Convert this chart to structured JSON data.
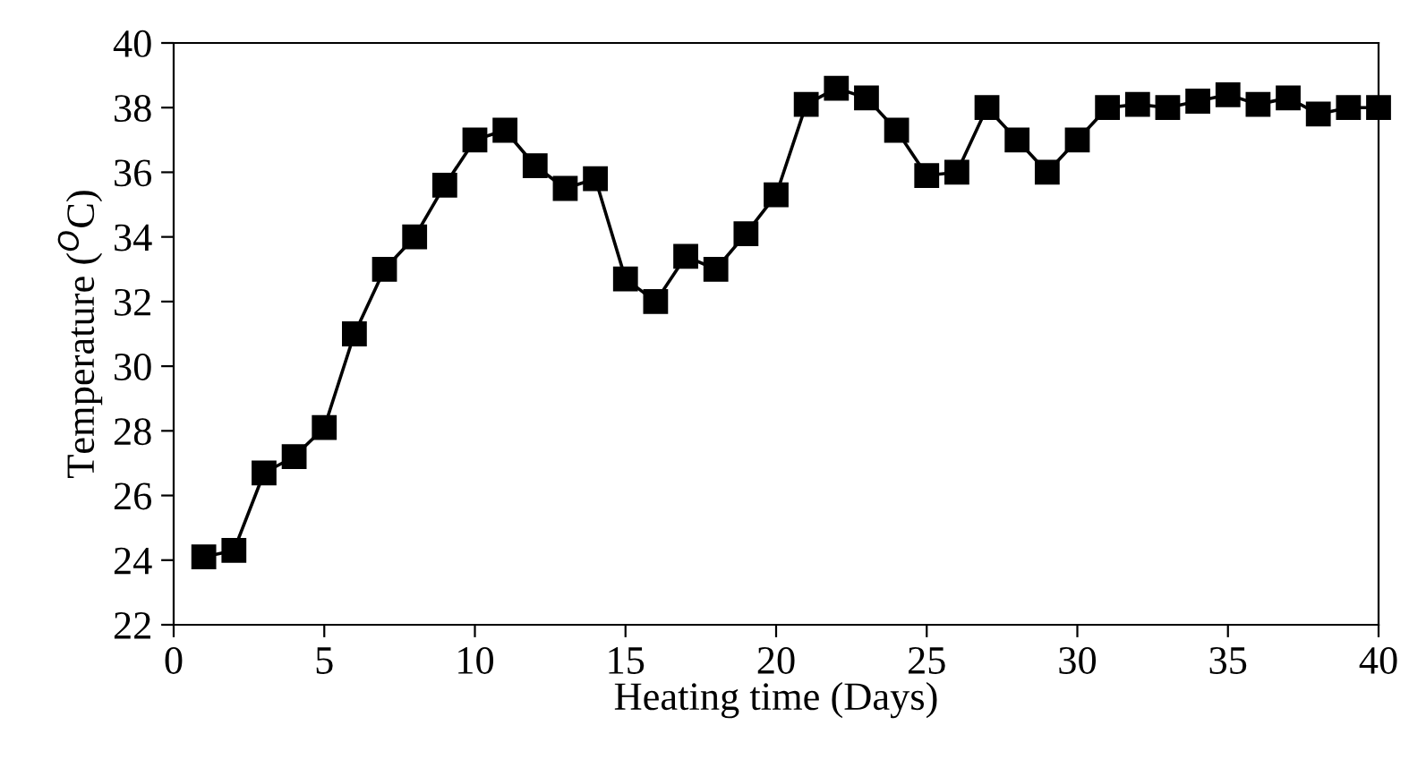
{
  "chart_data": {
    "type": "line",
    "xlabel": "Heating time (Days)",
    "ylabel": "Temperature ($^{O}$C)",
    "x": [
      1,
      2,
      3,
      4,
      5,
      6,
      7,
      8,
      9,
      10,
      11,
      12,
      13,
      14,
      15,
      16,
      17,
      18,
      19,
      20,
      21,
      22,
      23,
      24,
      25,
      26,
      27,
      28,
      29,
      30,
      31,
      32,
      33,
      34,
      35,
      36,
      37,
      38,
      39,
      40
    ],
    "series": [
      {
        "color": "#000000",
        "values": [
          24.1,
          24.3,
          26.7,
          27.2,
          28.1,
          31.0,
          33.0,
          34.0,
          35.6,
          37.0,
          37.3,
          36.2,
          35.5,
          35.8,
          32.7,
          32.0,
          33.4,
          33.0,
          34.1,
          35.3,
          38.1,
          38.6,
          38.3,
          37.3,
          35.9,
          36.0,
          38.0,
          37.0,
          36.0,
          37.0,
          38.0,
          38.1,
          38.0,
          38.2,
          38.4,
          38.1,
          38.3,
          37.8,
          38.0,
          38.0
        ]
      }
    ],
    "xlim": [
      0,
      40
    ],
    "xticks": [
      0,
      5,
      10,
      15,
      20,
      25,
      30,
      35,
      40
    ],
    "ylim": [
      22,
      40
    ],
    "yticks": [
      22,
      24,
      26,
      28,
      30,
      32,
      34,
      36,
      38,
      40
    ],
    "marker": "square",
    "line_style": "solid",
    "grid": false,
    "legend": false
  }
}
